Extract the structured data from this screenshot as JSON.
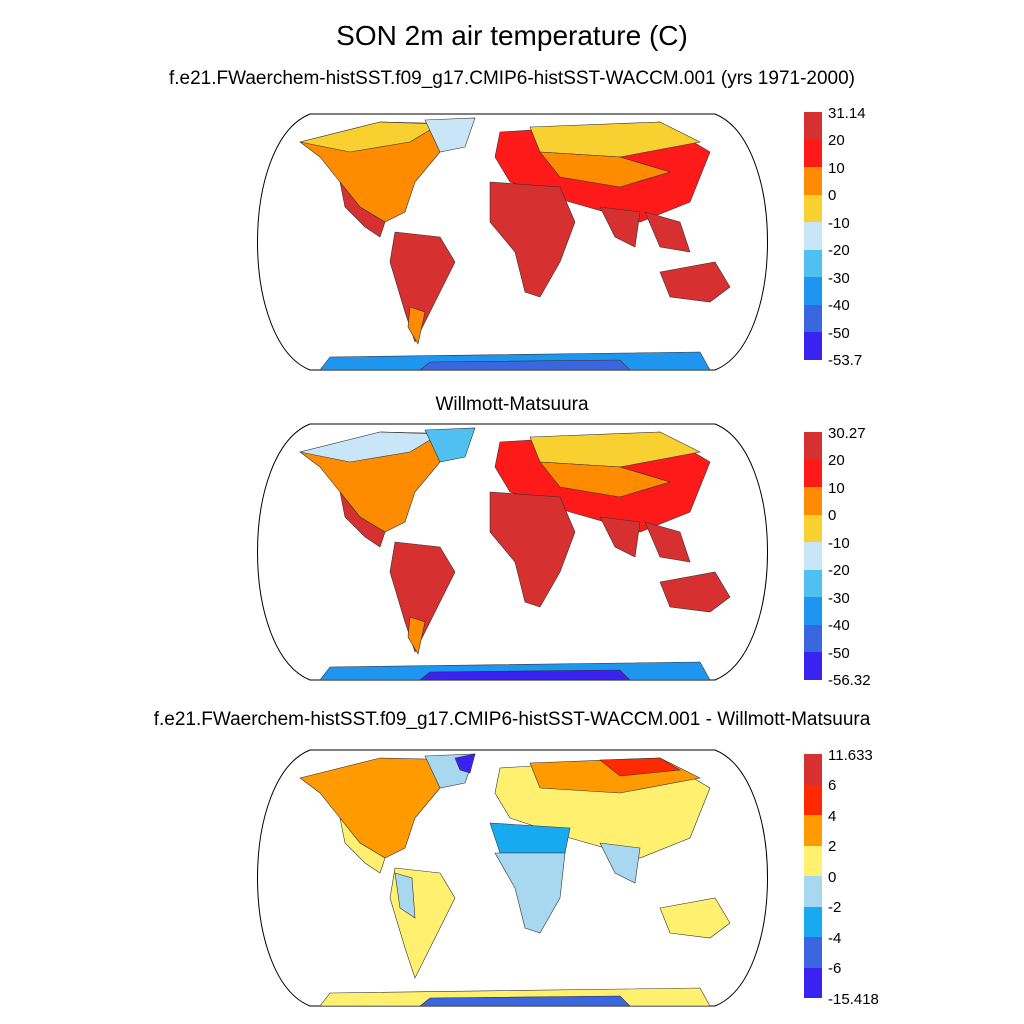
{
  "title": "SON 2m air temperature (C)",
  "panels": [
    {
      "title": "f.e21.FWaerchem-histSST.f09_g17.CMIP6-histSST-WACCM.001 (yrs 1971-2000)",
      "colorbar": {
        "labels": [
          "31.14",
          "20",
          "10",
          "0",
          "-10",
          "-20",
          "-30",
          "-40",
          "-50",
          "-53.7"
        ],
        "colors": [
          "#d63030",
          "#ff1a1a",
          "#ff8c00",
          "#f8d030",
          "#c8e6f8",
          "#50c0f0",
          "#1e96f0",
          "#3a66e0",
          "#3a22f0"
        ]
      }
    },
    {
      "title": "Willmott-Matsuura",
      "colorbar": {
        "labels": [
          "30.27",
          "20",
          "10",
          "0",
          "-10",
          "-20",
          "-30",
          "-40",
          "-50",
          "-56.32"
        ],
        "colors": [
          "#d63030",
          "#ff1a1a",
          "#ff8c00",
          "#f8d030",
          "#c8e6f8",
          "#50c0f0",
          "#1e96f0",
          "#3a66e0",
          "#3a22f0"
        ]
      }
    },
    {
      "title": "f.e21.FWaerchem-histSST.f09_g17.CMIP6-histSST-WACCM.001 - Willmott-Matsuura",
      "colorbar": {
        "labels": [
          "11.633",
          "6",
          "4",
          "2",
          "0",
          "-2",
          "-4",
          "-6",
          "-15.418"
        ],
        "colors": [
          "#d63030",
          "#ff2a00",
          "#ff9a00",
          "#fff070",
          "#a8d8f0",
          "#18aaf0",
          "#3a66e0",
          "#3a22f0"
        ]
      }
    }
  ],
  "colors": {
    "land_edge": "#333333",
    "map_edge": "#000000"
  }
}
